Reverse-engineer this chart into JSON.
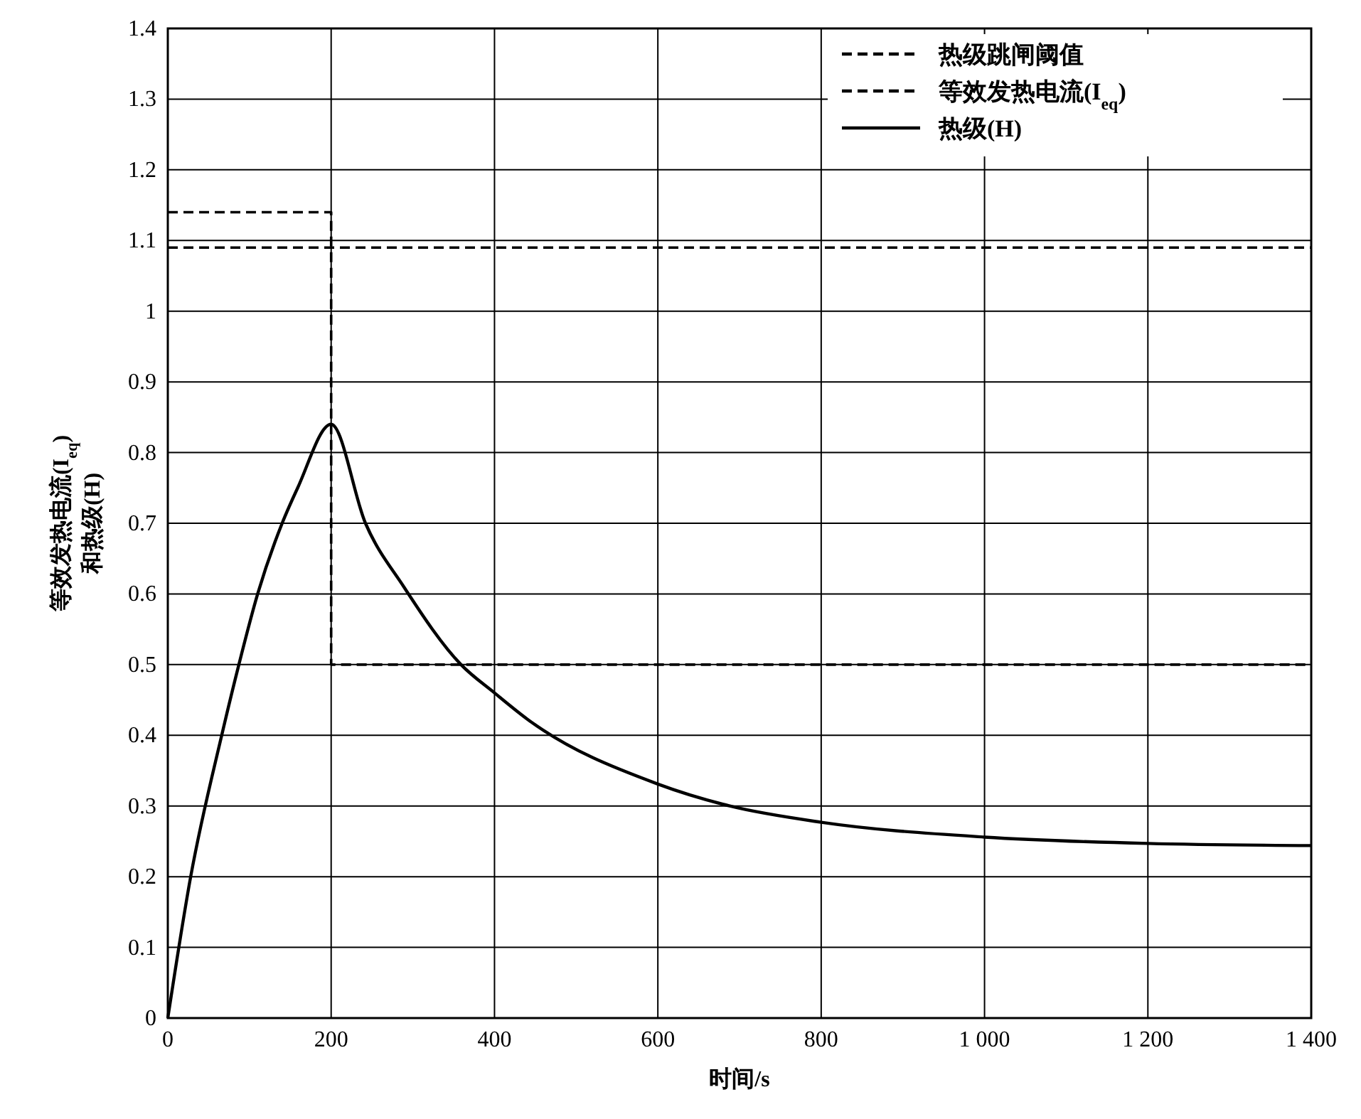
{
  "chart_data": {
    "type": "line",
    "xlabel": "时间/s",
    "ylabel": "等效发热电流(I$_{eq}$)\n和热级(H)",
    "xlim": [
      0,
      1400
    ],
    "ylim": [
      0,
      1.4
    ],
    "xticks": [
      0,
      200,
      400,
      600,
      800,
      {
        "value": 1000,
        "label": "1 000"
      },
      {
        "value": 1200,
        "label": "1 200"
      },
      {
        "value": 1400,
        "label": "1 400"
      }
    ],
    "yticks": [
      0,
      0.1,
      0.2,
      0.3,
      0.4,
      0.5,
      0.6,
      0.7,
      0.8,
      0.9,
      1.0,
      1.1,
      1.2,
      1.3,
      1.4
    ],
    "grid": true,
    "legend": "top right",
    "marker": "none",
    "series": [
      {
        "name": "热级跳闸阈值",
        "color": "#000000",
        "line_style": "dashed",
        "x": [
          0,
          1400
        ],
        "values": [
          1.09,
          1.09
        ]
      },
      {
        "name": "等效发热电流(I$_{eq}$)",
        "type": "step",
        "color": "#000000",
        "line_style": "dashed",
        "x": [
          0,
          200,
          1400
        ],
        "values": [
          1.14,
          0.5,
          0.5
        ]
      },
      {
        "name": "热级(H)",
        "color": "#000000",
        "line_style": "solid",
        "x": [
          0,
          28,
          66,
          87,
          110,
          140,
          159,
          200,
          242,
          289,
          359,
          400,
          440,
          600,
          688,
          800,
          1000,
          1200,
          1400
        ],
        "values": [
          0,
          0.2,
          0.4,
          0.5,
          0.6,
          0.7,
          0.75,
          0.84,
          0.7,
          0.61,
          0.5,
          0.46,
          0.423,
          0.331,
          0.3,
          0.277,
          0.256,
          0.247,
          0.244
        ]
      }
    ]
  }
}
